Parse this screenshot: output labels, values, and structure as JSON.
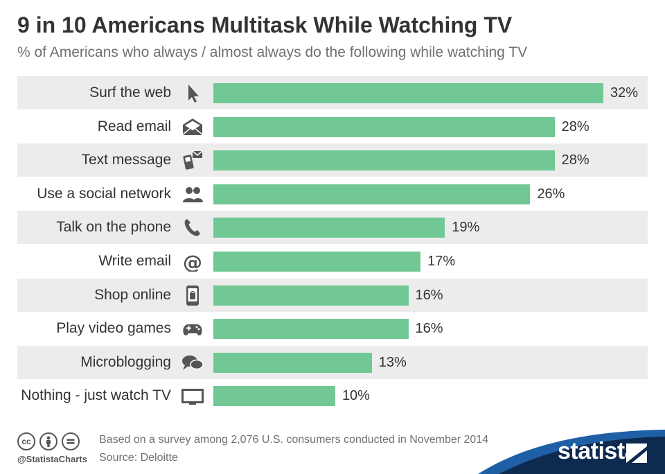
{
  "header": {
    "title": "9 in 10 Americans Multitask While Watching TV",
    "subtitle": "% of Americans who always / almost always do the following while watching TV"
  },
  "chart_data": {
    "type": "bar",
    "orientation": "horizontal",
    "title": "9 in 10 Americans Multitask While Watching TV",
    "subtitle": "% of Americans who always / almost always do the following while watching TV",
    "categories": [
      "Surf the web",
      "Read email",
      "Text message",
      "Use a social network",
      "Talk on the phone",
      "Write email",
      "Shop online",
      "Play video games",
      "Microblogging",
      "Nothing - just watch TV"
    ],
    "values": [
      32,
      28,
      28,
      26,
      19,
      17,
      16,
      16,
      13,
      10
    ],
    "value_labels": [
      "32%",
      "28%",
      "28%",
      "26%",
      "19%",
      "17%",
      "16%",
      "16%",
      "13%",
      "10%"
    ],
    "icons": [
      "cursor-icon",
      "envelope-icon",
      "mobile-message-icon",
      "people-icon",
      "phone-icon",
      "at-sign-icon",
      "shopping-phone-icon",
      "gamepad-icon",
      "speech-bubbles-icon",
      "tv-icon"
    ],
    "xlim": [
      0,
      32
    ],
    "unit": "%",
    "bar_color": "#72c895",
    "row_shade_color": "#ececec"
  },
  "footer": {
    "handle": "@StatistaCharts",
    "note": "Based on a survey among 2,076 U.S. consumers conducted in November 2014",
    "source": "Source: Deloitte",
    "brand": "statista",
    "license_icons": [
      "cc-icon",
      "attribution-icon",
      "no-derivatives-icon"
    ]
  },
  "colors": {
    "text": "#333333",
    "muted": "#707070",
    "brand_dark": "#0e2a4f",
    "brand_blue": "#1f5fa6"
  }
}
